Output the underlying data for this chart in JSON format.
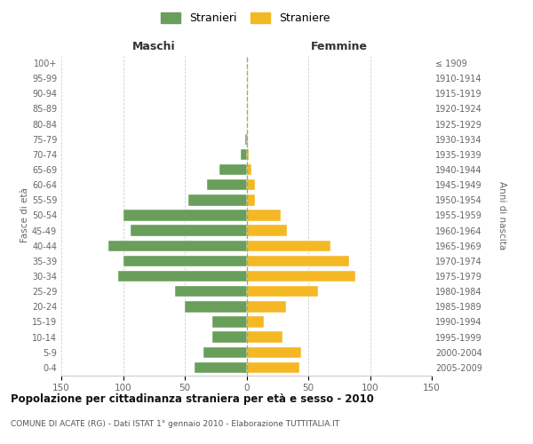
{
  "age_groups": [
    "100+",
    "95-99",
    "90-94",
    "85-89",
    "80-84",
    "75-79",
    "70-74",
    "65-69",
    "60-64",
    "55-59",
    "50-54",
    "45-49",
    "40-44",
    "35-39",
    "30-34",
    "25-29",
    "20-24",
    "15-19",
    "10-14",
    "5-9",
    "0-4"
  ],
  "birth_years": [
    "≤ 1909",
    "1910-1914",
    "1915-1919",
    "1920-1924",
    "1925-1929",
    "1930-1934",
    "1935-1939",
    "1940-1944",
    "1945-1949",
    "1950-1954",
    "1955-1959",
    "1960-1964",
    "1965-1969",
    "1970-1974",
    "1975-1979",
    "1980-1984",
    "1985-1989",
    "1990-1994",
    "1995-1999",
    "2000-2004",
    "2005-2009"
  ],
  "males": [
    0,
    0,
    0,
    0,
    0,
    1,
    5,
    22,
    32,
    47,
    100,
    94,
    112,
    100,
    104,
    58,
    50,
    28,
    28,
    35,
    42
  ],
  "females": [
    0,
    0,
    0,
    0,
    0,
    1,
    2,
    4,
    7,
    7,
    28,
    33,
    68,
    83,
    88,
    58,
    32,
    14,
    29,
    44,
    43
  ],
  "male_color": "#6a9e5b",
  "female_color": "#f5b825",
  "background_color": "#ffffff",
  "grid_color": "#cccccc",
  "title": "Popolazione per cittadinanza straniera per età e sesso - 2010",
  "subtitle": "COMUNE DI ACATE (RG) - Dati ISTAT 1° gennaio 2010 - Elaborazione TUTTITALIA.IT",
  "xlabel_left": "Maschi",
  "xlabel_right": "Femmine",
  "ylabel_left": "Fasce di età",
  "ylabel_right": "Anni di nascita",
  "xlim": 150,
  "legend_stranieri": "Stranieri",
  "legend_straniere": "Straniere"
}
